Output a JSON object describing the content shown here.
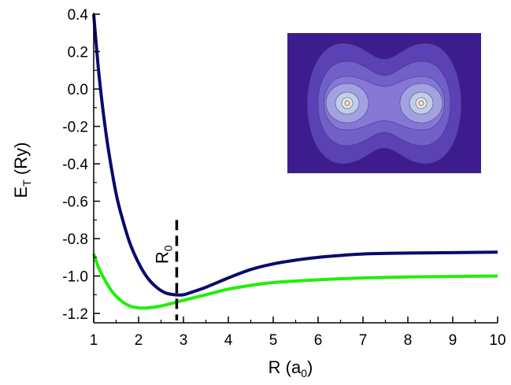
{
  "chart_data": {
    "type": "line",
    "xlabel": {
      "main": "R (a",
      "sub": "0",
      "close": ")"
    },
    "ylabel": {
      "main": "E",
      "sub": "T",
      "rest": " (Ry)"
    },
    "xlim": [
      1,
      10
    ],
    "ylim": [
      -1.25,
      0.4
    ],
    "x_ticks": [
      1,
      2,
      3,
      4,
      5,
      6,
      7,
      8,
      9,
      10
    ],
    "x_tick_labels": [
      "1",
      "2",
      "3",
      "4",
      "5",
      "6",
      "7",
      "8",
      "9",
      "10"
    ],
    "y_ticks": [
      0.4,
      0.2,
      0.0,
      -0.2,
      -0.4,
      -0.6,
      -0.8,
      -1.0,
      -1.2
    ],
    "y_tick_labels": [
      "0.4",
      "0.2",
      "0.0",
      "-0.2",
      "-0.4",
      "-0.6",
      "-0.8",
      "-1.0",
      "-1.2"
    ],
    "grid": false,
    "series": [
      {
        "color": "#0a0a6e",
        "x": [
          1.0,
          1.1,
          1.2,
          1.3,
          1.4,
          1.5,
          1.6,
          1.8,
          2.0,
          2.2,
          2.4,
          2.6,
          2.8,
          3.0,
          3.2,
          3.5,
          4.0,
          4.5,
          5.0,
          5.5,
          6.0,
          6.5,
          7.0,
          8.0,
          9.0,
          10.0
        ],
        "y": [
          0.4,
          0.12,
          -0.1,
          -0.28,
          -0.43,
          -0.56,
          -0.66,
          -0.82,
          -0.93,
          -1.01,
          -1.06,
          -1.09,
          -1.1,
          -1.1,
          -1.085,
          -1.06,
          -1.01,
          -0.965,
          -0.935,
          -0.915,
          -0.9,
          -0.89,
          -0.882,
          -0.877,
          -0.875,
          -0.872
        ]
      },
      {
        "color": "#22ee0a",
        "x": [
          1.0,
          1.1,
          1.2,
          1.4,
          1.6,
          1.8,
          2.0,
          2.2,
          2.5,
          3.0,
          3.5,
          4.0,
          4.5,
          5.0,
          6.0,
          7.0,
          8.0,
          9.0,
          10.0
        ],
        "y": [
          -0.88,
          -0.95,
          -1.0,
          -1.08,
          -1.13,
          -1.16,
          -1.17,
          -1.17,
          -1.16,
          -1.13,
          -1.1,
          -1.07,
          -1.05,
          -1.035,
          -1.02,
          -1.01,
          -1.005,
          -1.002,
          -1.0
        ]
      }
    ],
    "annotations": [
      {
        "label": "R",
        "sub": "0",
        "x": 2.85,
        "y_from": -1.25,
        "y_to": -0.7,
        "style": "dashed"
      }
    ],
    "inset": {
      "type": "contour-image",
      "background": "#3d1c8e",
      "levels": [
        "#5a41b4",
        "#7060c8",
        "#8677d6",
        "#a3a2e0",
        "#c2cde6",
        "#dfe9e9"
      ]
    }
  }
}
